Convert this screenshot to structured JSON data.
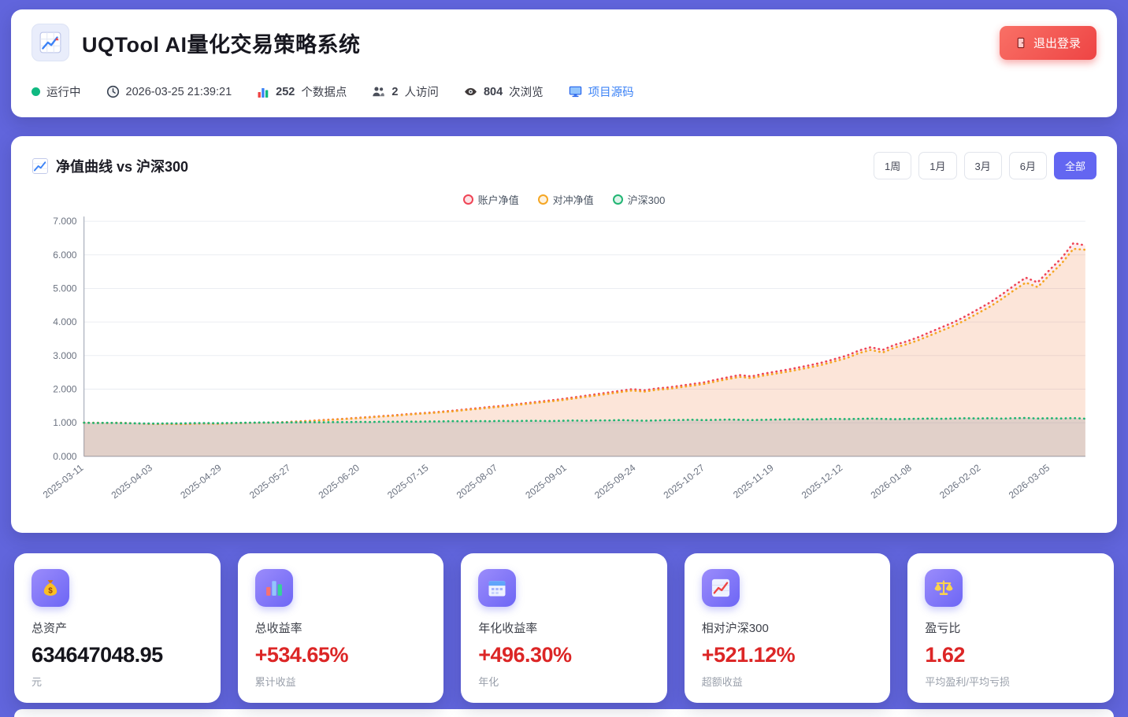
{
  "header": {
    "title": "UQTool AI量化交易策略系统",
    "logout_label": "退出登录",
    "status": {
      "running": "运行中",
      "datetime": "2026-03-25 21:39:21",
      "datapoints": "252",
      "datapoints_label": "个数据点",
      "visitors": "2",
      "visitors_label": "人访问",
      "views": "804",
      "views_label": "次浏览",
      "source_label": "项目源码"
    }
  },
  "chart": {
    "title": "净值曲线 vs 沪深300",
    "range_buttons": [
      "1周",
      "1月",
      "3月",
      "6月",
      "全部"
    ],
    "active_range": "全部"
  },
  "chart_data": {
    "type": "line",
    "title": "净值曲线 vs 沪深300",
    "ylim": [
      0,
      7
    ],
    "y_ticks": [
      "0.000",
      "1.000",
      "2.000",
      "3.000",
      "4.000",
      "5.000",
      "6.000",
      "7.000"
    ],
    "x_ticks": [
      "2025-03-11",
      "2025-04-03",
      "2025-04-29",
      "2025-05-27",
      "2025-06-20",
      "2025-07-15",
      "2025-08-07",
      "2025-09-01",
      "2025-09-24",
      "2025-10-27",
      "2025-11-19",
      "2025-12-12",
      "2026-01-08",
      "2026-02-02",
      "2026-03-05"
    ],
    "legend_position": "top-center",
    "grid": true,
    "series": [
      {
        "name": "账户净值",
        "color": "#ef4455",
        "fill": "rgba(239,68,85,0.10)",
        "values": [
          1.0,
          0.998,
          0.992,
          1.0,
          0.985,
          0.972,
          0.963,
          0.97,
          0.96,
          0.968,
          0.978,
          0.97,
          0.98,
          0.99,
          0.998,
          1.002,
          1.01,
          1.022,
          1.04,
          1.058,
          1.08,
          1.1,
          1.122,
          1.148,
          1.17,
          1.198,
          1.22,
          1.25,
          1.278,
          1.3,
          1.33,
          1.36,
          1.398,
          1.43,
          1.468,
          1.5,
          1.54,
          1.58,
          1.62,
          1.66,
          1.7,
          1.75,
          1.8,
          1.85,
          1.9,
          1.95,
          2.0,
          1.965,
          2.02,
          2.05,
          2.1,
          2.15,
          2.2,
          2.28,
          2.35,
          2.42,
          2.38,
          2.46,
          2.52,
          2.58,
          2.65,
          2.72,
          2.8,
          2.9,
          3.0,
          3.15,
          3.25,
          3.17,
          3.32,
          3.42,
          3.55,
          3.7,
          3.85,
          4.0,
          4.18,
          4.38,
          4.58,
          4.82,
          5.08,
          5.32,
          5.18,
          5.55,
          5.9,
          6.35,
          6.28
        ]
      },
      {
        "name": "对冲净值",
        "color": "#f5a623",
        "fill": "rgba(245,166,35,0.10)",
        "values": [
          1.0,
          0.998,
          0.992,
          1.0,
          0.985,
          0.972,
          0.963,
          0.97,
          0.96,
          0.968,
          0.978,
          0.97,
          0.98,
          0.99,
          0.998,
          1.0,
          1.008,
          1.018,
          1.035,
          1.052,
          1.072,
          1.09,
          1.112,
          1.136,
          1.158,
          1.185,
          1.206,
          1.236,
          1.262,
          1.284,
          1.312,
          1.342,
          1.378,
          1.41,
          1.446,
          1.478,
          1.516,
          1.555,
          1.594,
          1.632,
          1.67,
          1.718,
          1.766,
          1.815,
          1.862,
          1.912,
          1.96,
          1.926,
          1.98,
          2.008,
          2.056,
          2.105,
          2.154,
          2.23,
          2.298,
          2.366,
          2.326,
          2.404,
          2.462,
          2.52,
          2.588,
          2.656,
          2.734,
          2.83,
          2.928,
          3.072,
          3.17,
          3.09,
          3.238,
          3.335,
          3.46,
          3.605,
          3.75,
          3.896,
          4.07,
          4.264,
          4.458,
          4.69,
          4.942,
          5.175,
          5.04,
          5.4,
          5.74,
          6.18,
          6.15
        ]
      },
      {
        "name": "沪深300",
        "color": "#21b573",
        "fill": "rgba(130,135,145,0.22)",
        "values": [
          1.0,
          0.992,
          0.998,
          0.99,
          0.983,
          0.98,
          0.975,
          0.982,
          0.978,
          0.988,
          0.992,
          0.985,
          0.99,
          0.998,
          1.002,
          1.008,
          1.002,
          1.01,
          1.012,
          1.018,
          1.012,
          1.02,
          1.018,
          1.026,
          1.022,
          1.03,
          1.028,
          1.036,
          1.03,
          1.038,
          1.04,
          1.048,
          1.042,
          1.05,
          1.046,
          1.055,
          1.048,
          1.058,
          1.056,
          1.05,
          1.058,
          1.066,
          1.06,
          1.068,
          1.07,
          1.078,
          1.068,
          1.06,
          1.07,
          1.078,
          1.08,
          1.088,
          1.078,
          1.086,
          1.095,
          1.088,
          1.078,
          1.088,
          1.096,
          1.1,
          1.106,
          1.098,
          1.106,
          1.114,
          1.106,
          1.116,
          1.124,
          1.114,
          1.106,
          1.114,
          1.118,
          1.126,
          1.118,
          1.126,
          1.134,
          1.126,
          1.134,
          1.124,
          1.134,
          1.142,
          1.126,
          1.136,
          1.128,
          1.138,
          1.12
        ]
      }
    ]
  },
  "stats": [
    {
      "label": "总资产",
      "value": "634647048.95",
      "sub": "元",
      "value_color": "#15151c",
      "icon": "money-bag-icon"
    },
    {
      "label": "总收益率",
      "value": "+534.65%",
      "sub": "累计收益",
      "value_color": "#dc2626",
      "icon": "bar-chart-icon"
    },
    {
      "label": "年化收益率",
      "value": "+496.30%",
      "sub": "年化",
      "value_color": "#dc2626",
      "icon": "calendar-icon"
    },
    {
      "label": "相对沪深300",
      "value": "+521.12%",
      "sub": "超额收益",
      "value_color": "#dc2626",
      "icon": "chart-up-icon"
    },
    {
      "label": "盈亏比",
      "value": "1.62",
      "sub": "平均盈利/平均亏损",
      "value_color": "#dc2626",
      "icon": "scales-icon"
    }
  ]
}
